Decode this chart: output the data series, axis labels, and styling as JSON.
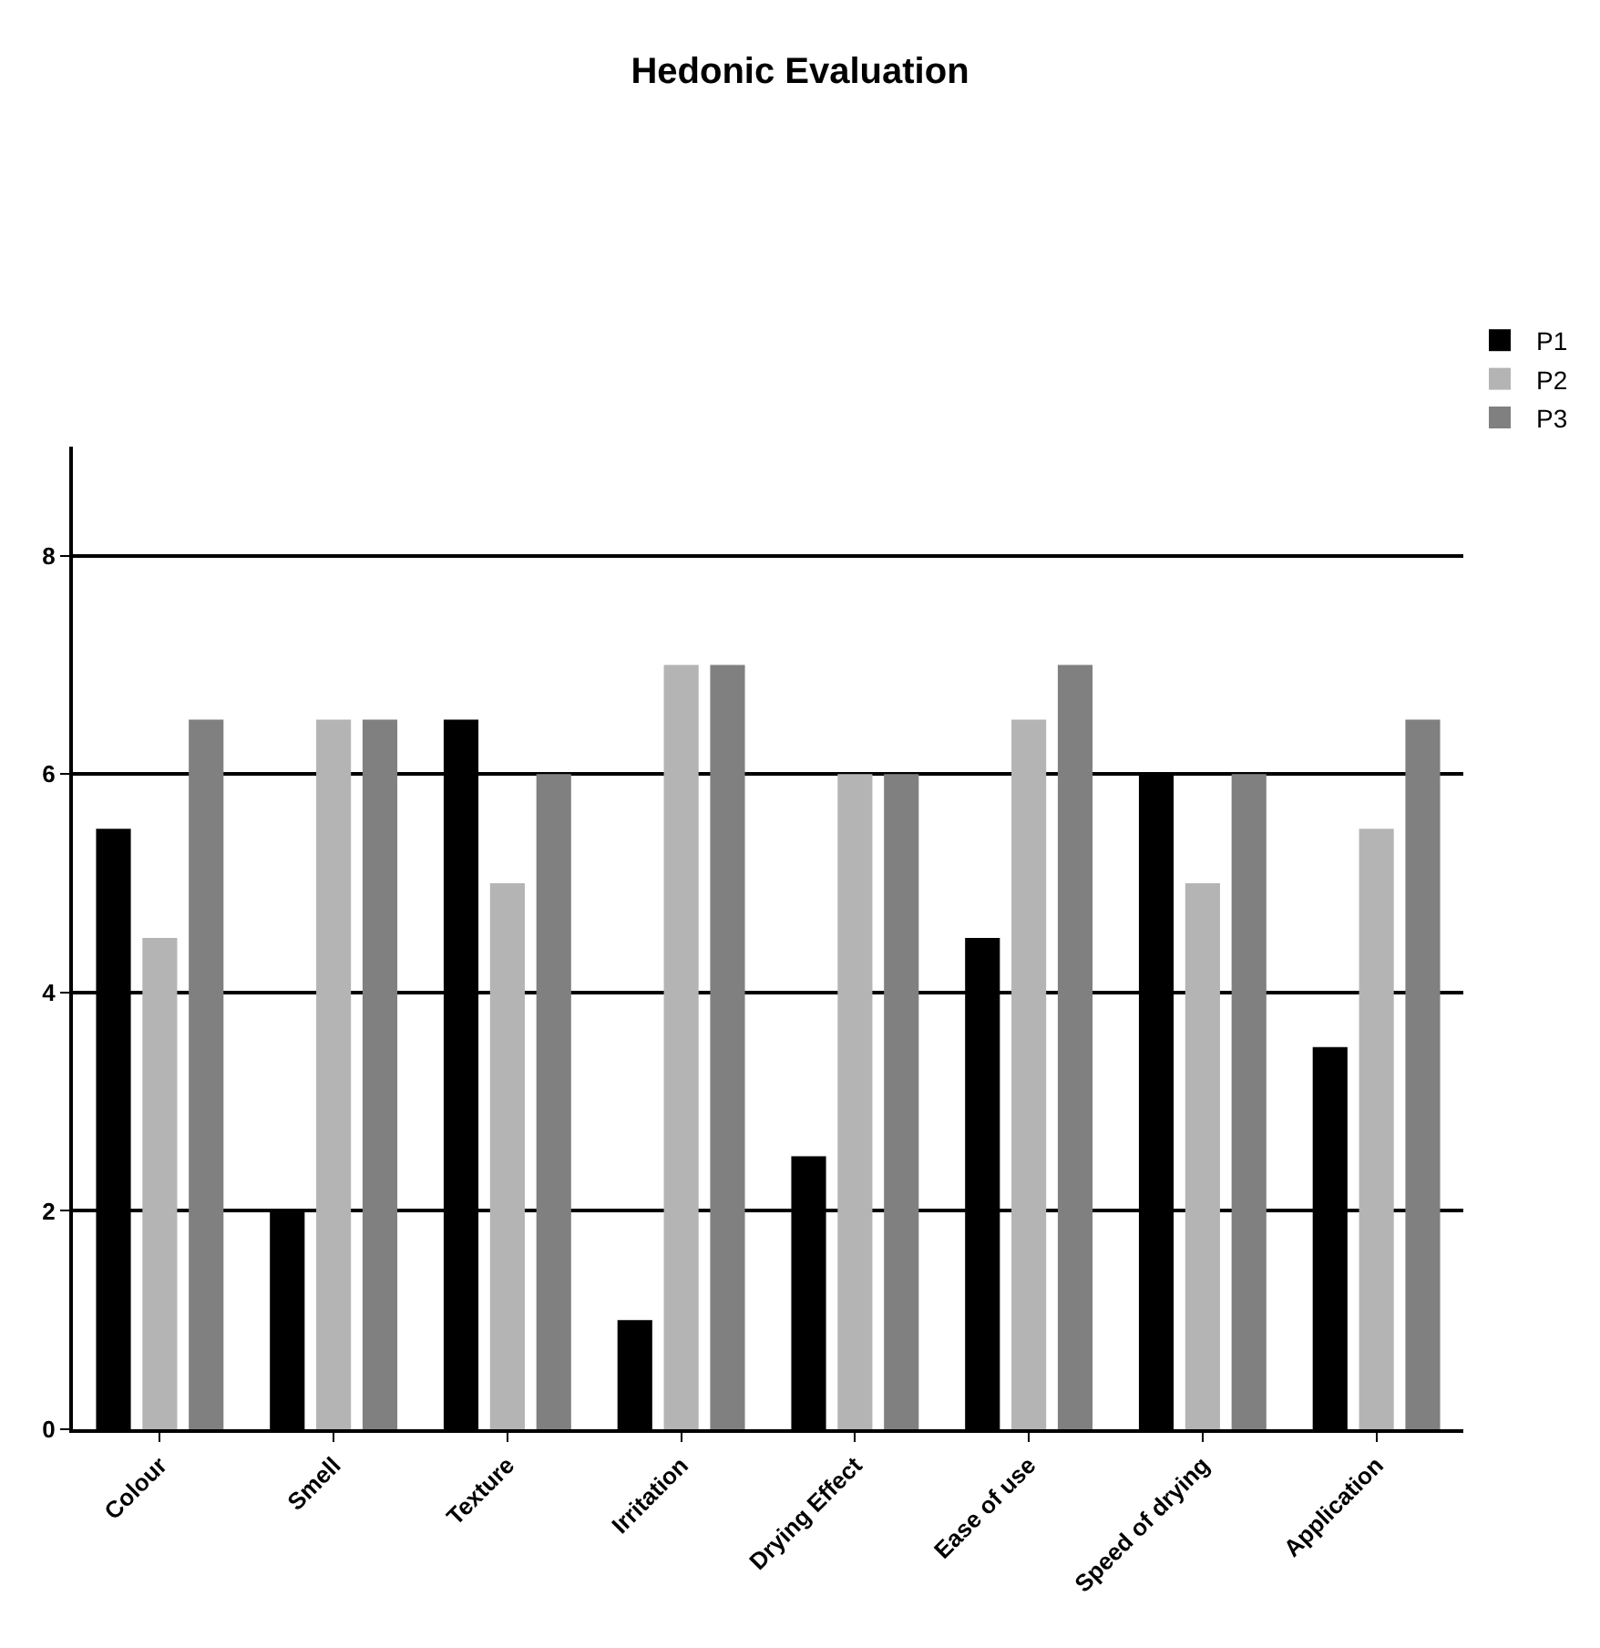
{
  "chart_data": {
    "type": "bar",
    "title": "Hedonic Evaluation",
    "categories": [
      "Colour",
      "Smell",
      "Texture",
      "Irritation",
      "Drying Effect",
      "Ease of use",
      "Speed of drying",
      "Application"
    ],
    "series": [
      {
        "name": "P1",
        "color": "#000000",
        "values": [
          5.5,
          2,
          6.5,
          1,
          2.5,
          4.5,
          6,
          3.5
        ]
      },
      {
        "name": "P2",
        "color": "#b4b4b4",
        "values": [
          4.5,
          6.5,
          5,
          7,
          6,
          6.5,
          5,
          5.5
        ]
      },
      {
        "name": "P3",
        "color": "#808080",
        "values": [
          6.5,
          6.5,
          6,
          7,
          6,
          7,
          6,
          6.5
        ]
      }
    ],
    "ylim": [
      0,
      9
    ],
    "yticks": [
      0,
      2,
      4,
      6,
      8
    ],
    "grid": "y",
    "legend": "top right"
  }
}
